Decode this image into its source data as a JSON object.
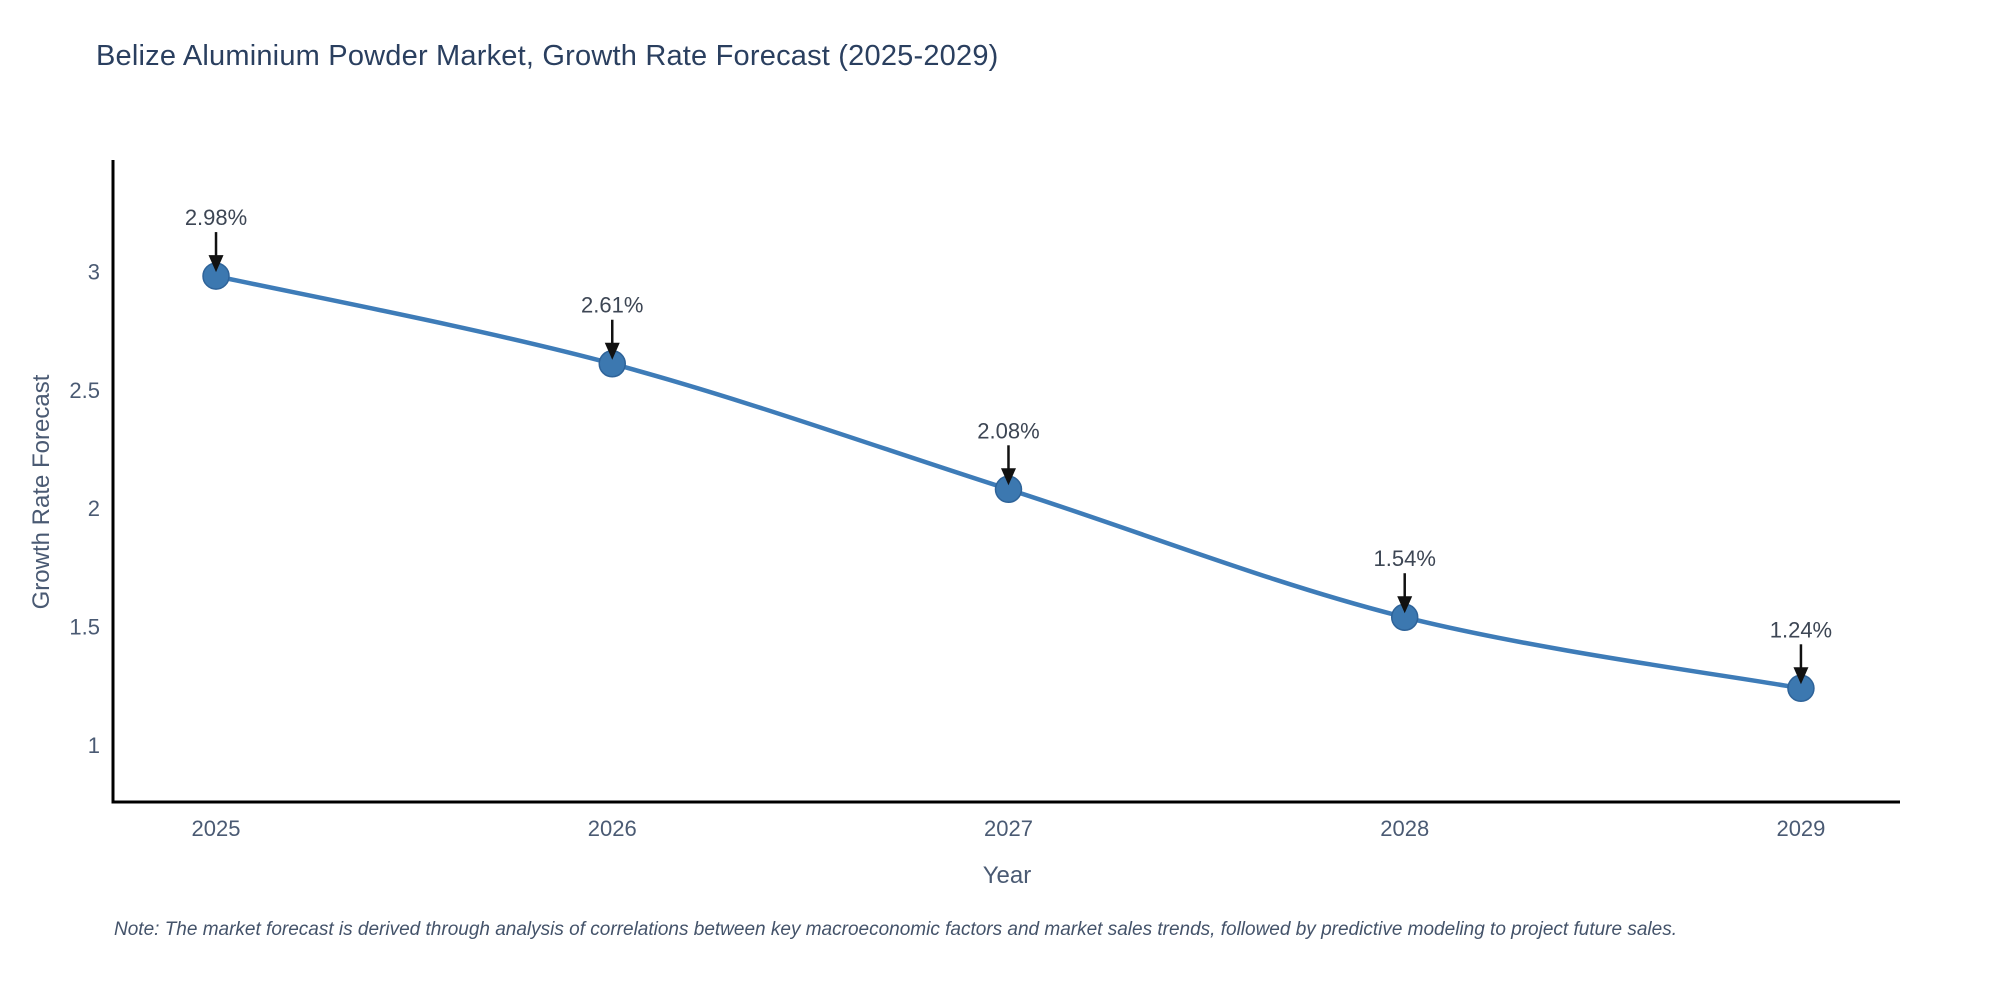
{
  "title": "Belize Aluminium Powder Market, Growth Rate Forecast (2025-2029)",
  "note": "Note: The market forecast is derived through analysis of correlations between key macroeconomic factors and market sales trends, followed by predictive modeling to project future sales.",
  "chart_data": {
    "type": "line",
    "title": "Belize Aluminium Powder Market, Growth Rate Forecast (2025-2029)",
    "xlabel": "Year",
    "ylabel": "Growth Rate Forecast",
    "x": [
      2025,
      2026,
      2027,
      2028,
      2029
    ],
    "y": [
      2.98,
      2.61,
      2.08,
      1.54,
      1.24
    ],
    "point_labels": [
      "2.98%",
      "2.61%",
      "2.08%",
      "1.54%",
      "1.24%"
    ],
    "x_ticks": [
      "2025",
      "2026",
      "2027",
      "2028",
      "2029"
    ],
    "y_ticks": [
      "3",
      "2.5",
      "2",
      "1.5",
      "1"
    ],
    "y_tick_values": [
      3,
      2.5,
      2,
      1.5,
      1
    ],
    "xlim": [
      2024.74,
      2029.25
    ],
    "ylim": [
      0.76,
      3.47
    ],
    "line_shape": "spline",
    "grid": false,
    "legend": "none",
    "colors": {
      "line": "#3e7cb8",
      "marker_fill": "#3c78b0",
      "marker_edge": "#2e6399",
      "axis": "#000000",
      "tick_text": "#4a5a73",
      "annotation_text": "#3d4654",
      "arrow": "#111111",
      "title_text": "#2a3f5f"
    }
  }
}
